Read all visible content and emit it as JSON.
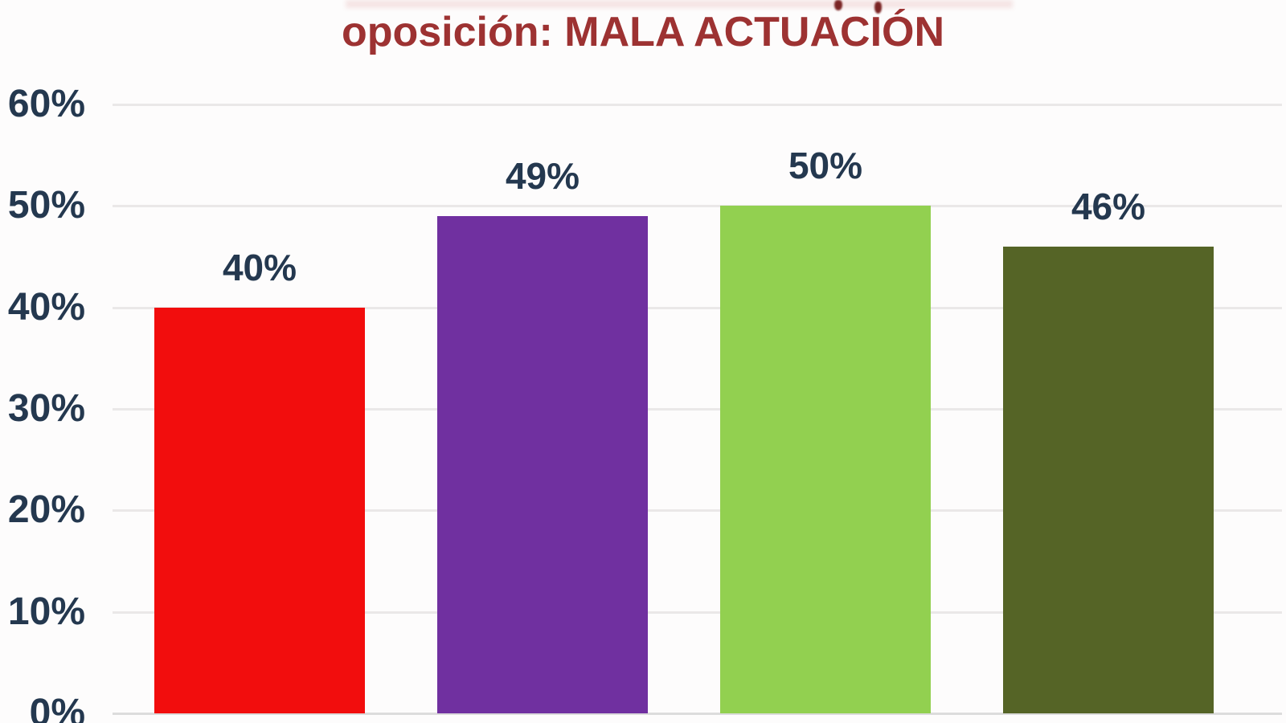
{
  "chart_data": {
    "type": "bar",
    "title": "oposición: MALA ACTUACIÓN",
    "values": [
      40,
      49,
      50,
      46
    ],
    "value_labels": [
      "40%",
      "49%",
      "50%",
      "46%"
    ],
    "bar_colors": [
      "#f20d0d",
      "#7030a0",
      "#92d050",
      "#556426"
    ],
    "yticks": [
      {
        "label": "60%",
        "value": 60
      },
      {
        "label": "50%",
        "value": 50
      },
      {
        "label": "40%",
        "value": 40
      },
      {
        "label": "30%",
        "value": 30
      },
      {
        "label": "20%",
        "value": 20
      },
      {
        "label": "10%",
        "value": 10
      },
      {
        "label": "0%",
        "value": 0
      }
    ],
    "ylim": [
      0,
      60
    ],
    "xlabel": "",
    "ylabel": "",
    "grid": true,
    "legend_position": "none",
    "colors": {
      "title_text": "#9d3232",
      "axis_text": "#24384f",
      "value_label_text": "#24384f",
      "gridline": "#eae8e8",
      "baseline": "#dcdcdc",
      "background": "#fdfcfc"
    }
  }
}
